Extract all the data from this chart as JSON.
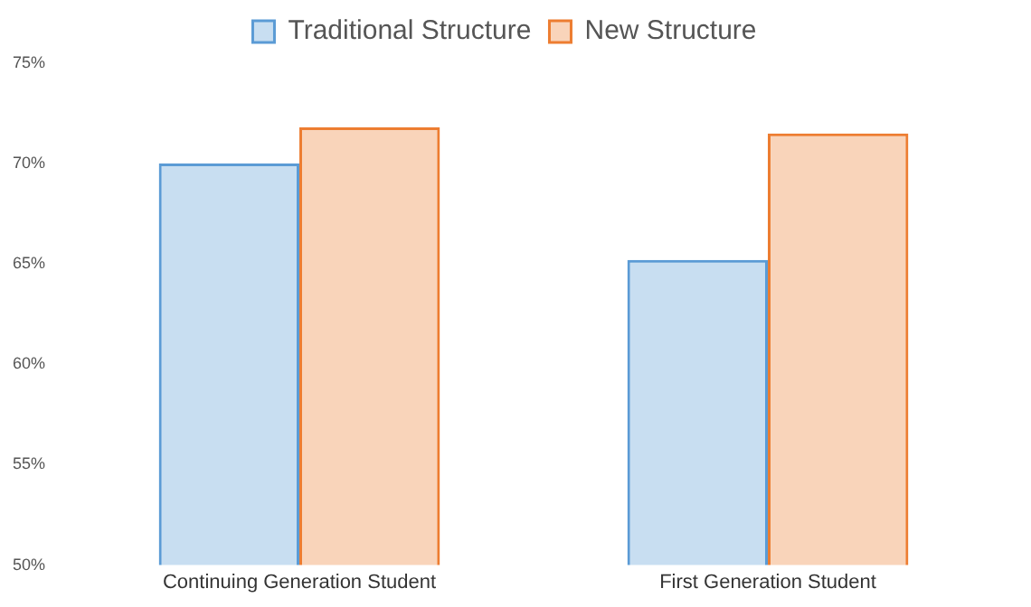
{
  "chart_data": {
    "type": "bar",
    "categories": [
      "Continuing Generation Student",
      "First Generation Student"
    ],
    "series": [
      {
        "name": "Traditional Structure",
        "color": "#5b9bd5",
        "values": [
          70,
          65.2
        ]
      },
      {
        "name": "New Structure",
        "color": "#ed7d31",
        "values": [
          71.8,
          71.5
        ]
      }
    ],
    "ylim": [
      50,
      75
    ],
    "yticks": [
      {
        "value": 50,
        "label": "50%"
      },
      {
        "value": 55,
        "label": "55%"
      },
      {
        "value": 60,
        "label": "60%"
      },
      {
        "value": 65,
        "label": "65%"
      },
      {
        "value": 70,
        "label": "70%"
      },
      {
        "value": 75,
        "label": "75%"
      }
    ],
    "grid": false,
    "legend": "top"
  }
}
